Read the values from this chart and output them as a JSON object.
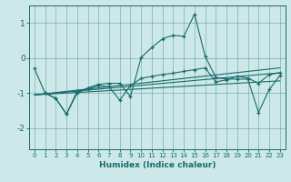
{
  "xlabel": "Humidex (Indice chaleur)",
  "xlim": [
    -0.5,
    23.5
  ],
  "ylim": [
    -2.6,
    1.5
  ],
  "yticks": [
    -2,
    -1,
    0,
    1
  ],
  "xticks": [
    0,
    1,
    2,
    3,
    4,
    5,
    6,
    7,
    8,
    9,
    10,
    11,
    12,
    13,
    14,
    15,
    16,
    17,
    18,
    19,
    20,
    21,
    22,
    23
  ],
  "bg_color": "#cce8e8",
  "line_color": "#1a6b6b",
  "line1_x": [
    0,
    1,
    2,
    3,
    4,
    5,
    6,
    7,
    8,
    9,
    10,
    11,
    12,
    13,
    14,
    15,
    16,
    17,
    18,
    19,
    20,
    21,
    22,
    23
  ],
  "line1_y": [
    -0.3,
    -1.0,
    -1.15,
    -1.6,
    -1.0,
    -0.85,
    -0.75,
    -0.72,
    -0.72,
    -1.1,
    0.02,
    0.3,
    0.55,
    0.65,
    0.62,
    1.25,
    0.05,
    -0.55,
    -0.6,
    -0.6,
    -0.6,
    -1.55,
    -0.9,
    -0.5
  ],
  "line2_x": [
    1,
    2,
    3,
    4,
    5,
    6,
    7,
    8,
    9,
    10,
    11,
    12,
    13,
    14,
    15,
    16,
    17,
    18,
    19,
    20,
    21,
    22,
    23
  ],
  "line2_y": [
    -1.0,
    -1.15,
    -1.6,
    -0.95,
    -0.88,
    -0.78,
    -0.82,
    -1.2,
    -0.78,
    -0.58,
    -0.52,
    -0.47,
    -0.43,
    -0.38,
    -0.33,
    -0.28,
    -0.68,
    -0.62,
    -0.52,
    -0.57,
    -0.72,
    -0.47,
    -0.42
  ],
  "line3_x": [
    0,
    23
  ],
  "line3_y": [
    -1.05,
    -0.42
  ],
  "line4_x": [
    0,
    23
  ],
  "line4_y": [
    -1.05,
    -0.28
  ],
  "line5_x": [
    0,
    23
  ],
  "line5_y": [
    -1.05,
    -0.65
  ]
}
